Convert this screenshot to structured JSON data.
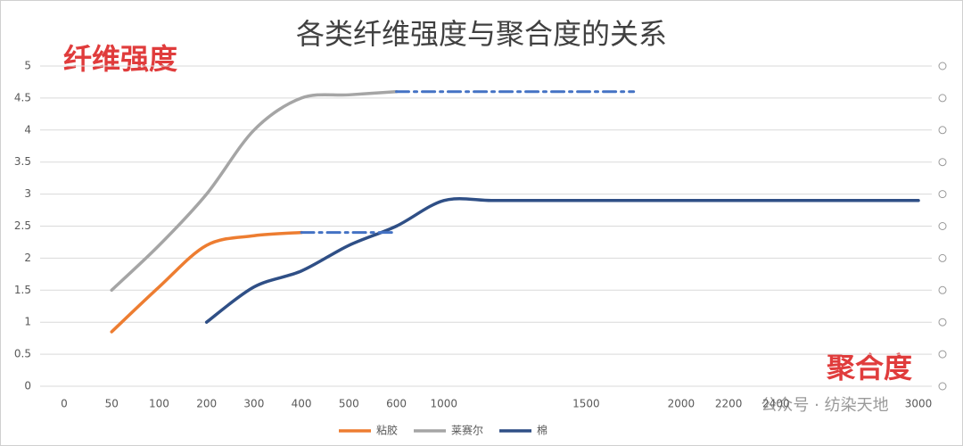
{
  "chart_data": {
    "type": "line",
    "title": "各类纤维强度与聚合度的关系",
    "y_annotation": "纤维强度",
    "x_annotation": "聚合度",
    "watermark": "公众号 · 纺染天地",
    "categories": [
      "0",
      "50",
      "100",
      "200",
      "300",
      "400",
      "500",
      "600",
      "1000",
      null,
      null,
      "1500",
      null,
      "2000",
      "2200",
      "2400",
      null,
      null,
      "3000"
    ],
    "series": [
      {
        "name": "粘胶",
        "color": "#ed7d31",
        "values": [
          null,
          0.85,
          1.55,
          2.2,
          2.35,
          2.4,
          null,
          null,
          null,
          null,
          null,
          null,
          null,
          null,
          null,
          null,
          null,
          null,
          null
        ]
      },
      {
        "name": "莱赛尔",
        "color": "#a5a5a5",
        "values": [
          null,
          1.5,
          2.2,
          3.0,
          4.0,
          4.5,
          4.55,
          4.6,
          null,
          null,
          null,
          null,
          null,
          null,
          null,
          null,
          null,
          null,
          null
        ]
      },
      {
        "name": "棉",
        "color": "#2f4f86",
        "values": [
          null,
          null,
          null,
          1.0,
          1.55,
          1.8,
          2.2,
          2.5,
          2.9,
          2.9,
          2.9,
          2.9,
          2.9,
          2.9,
          2.9,
          2.9,
          2.9,
          2.9,
          2.9
        ]
      }
    ],
    "projections": [
      {
        "color": "#4472c4",
        "values": [
          null,
          null,
          null,
          null,
          null,
          2.4,
          2.4,
          2.4,
          null,
          null,
          null,
          null,
          null,
          null,
          null,
          null,
          null,
          null,
          null
        ]
      },
      {
        "color": "#4472c4",
        "values": [
          null,
          null,
          null,
          null,
          null,
          null,
          null,
          4.6,
          4.6,
          4.6,
          4.6,
          4.6,
          4.6,
          null,
          null,
          null,
          null,
          null,
          null
        ]
      }
    ],
    "ylim": [
      0,
      5
    ],
    "yticks": [
      0,
      0.5,
      1,
      1.5,
      2,
      2.5,
      3,
      3.5,
      4,
      4.5,
      5
    ],
    "grid": true
  }
}
